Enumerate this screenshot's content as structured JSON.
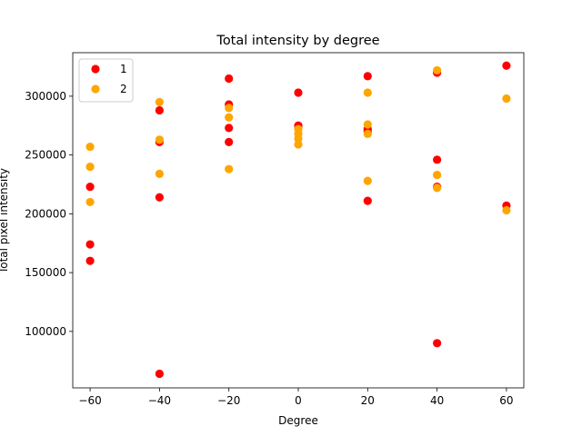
{
  "chart_data": {
    "type": "scatter",
    "title": "Total intensity by degree",
    "xlabel": "Degree",
    "ylabel": "Total pixel intensity",
    "xlim": [
      -65,
      65
    ],
    "ylim": [
      52000,
      337000
    ],
    "xticks": [
      -60,
      -40,
      -20,
      0,
      20,
      40,
      60
    ],
    "xtick_labels": [
      "−60",
      "−40",
      "−20",
      "0",
      "20",
      "40",
      "60"
    ],
    "yticks": [
      100000,
      150000,
      200000,
      250000,
      300000
    ],
    "ytick_labels": [
      "100000",
      "150000",
      "200000",
      "250000",
      "300000"
    ],
    "grid": false,
    "legend": {
      "position": "top-left"
    },
    "series": [
      {
        "name": "1",
        "color": "#ff0000",
        "points": [
          [
            -60,
            223000
          ],
          [
            -60,
            174000
          ],
          [
            -60,
            160000
          ],
          [
            -40,
            288000
          ],
          [
            -40,
            261000
          ],
          [
            -40,
            214000
          ],
          [
            -40,
            64000
          ],
          [
            -20,
            315000
          ],
          [
            -20,
            293000
          ],
          [
            -20,
            273000
          ],
          [
            -20,
            261000
          ],
          [
            0,
            303000
          ],
          [
            0,
            275000
          ],
          [
            0,
            273000
          ],
          [
            20,
            317000
          ],
          [
            20,
            272000
          ],
          [
            20,
            270000
          ],
          [
            20,
            211000
          ],
          [
            40,
            320000
          ],
          [
            40,
            246000
          ],
          [
            40,
            223000
          ],
          [
            40,
            90000
          ],
          [
            60,
            326000
          ],
          [
            60,
            207000
          ]
        ]
      },
      {
        "name": "2",
        "color": "#ffa500",
        "points": [
          [
            -60,
            257000
          ],
          [
            -60,
            240000
          ],
          [
            -60,
            210000
          ],
          [
            -40,
            295000
          ],
          [
            -40,
            263000
          ],
          [
            -40,
            234000
          ],
          [
            -20,
            290000
          ],
          [
            -20,
            282000
          ],
          [
            -20,
            238000
          ],
          [
            0,
            272000
          ],
          [
            0,
            268000
          ],
          [
            0,
            264000
          ],
          [
            0,
            259000
          ],
          [
            20,
            303000
          ],
          [
            20,
            276000
          ],
          [
            20,
            268000
          ],
          [
            20,
            228000
          ],
          [
            40,
            322000
          ],
          [
            40,
            233000
          ],
          [
            40,
            222000
          ],
          [
            60,
            298000
          ],
          [
            60,
            203000
          ]
        ]
      }
    ]
  }
}
